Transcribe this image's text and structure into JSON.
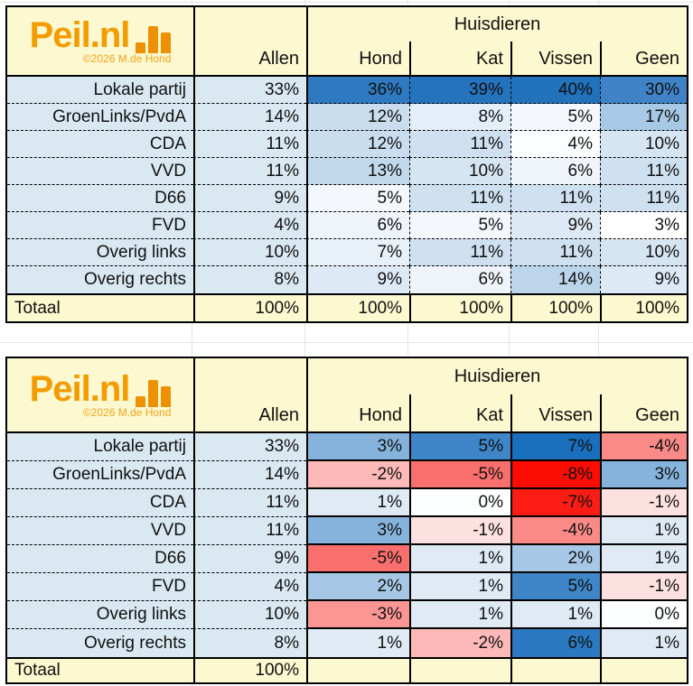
{
  "logo": {
    "brand": "Peil.nl",
    "copyright": "©2026 M.de Hond"
  },
  "colors": {
    "header_yellow": "#FCF8CF",
    "label_blue": "#D9E8F1",
    "brand_orange": "#F49B00",
    "bars_orange": "#EE9100",
    "copyright_orange": "#F5A31F",
    "border_black": "#000000",
    "faint_grid": "#E4E4E4",
    "positive_scale_max": "#1A6FBC",
    "negative_scale_max": "#FC0D04"
  },
  "chart_data": [
    {
      "type": "table",
      "group_header": "Huisdieren",
      "columns": [
        "Allen",
        "Hond",
        "Kat",
        "Vissen",
        "Geen"
      ],
      "rows": [
        {
          "label": "Lokale partij",
          "allen": "33%",
          "cells": [
            {
              "v": "36%",
              "bg": "#2E79C0"
            },
            {
              "v": "39%",
              "bg": "#2573BD"
            },
            {
              "v": "40%",
              "bg": "#2171BB"
            },
            {
              "v": "30%",
              "bg": "#3F83C6"
            }
          ]
        },
        {
          "label": "GroenLinks/PvdA",
          "allen": "14%",
          "cells": [
            {
              "v": "12%",
              "bg": "#C9DDEF"
            },
            {
              "v": "8%",
              "bg": "#E3EEF8"
            },
            {
              "v": "5%",
              "bg": "#F4F8FC"
            },
            {
              "v": "17%",
              "bg": "#A7C9E5"
            }
          ]
        },
        {
          "label": "CDA",
          "allen": "11%",
          "cells": [
            {
              "v": "12%",
              "bg": "#C9DDEF"
            },
            {
              "v": "11%",
              "bg": "#CFE1F1"
            },
            {
              "v": "4%",
              "bg": "#FBFDFE"
            },
            {
              "v": "10%",
              "bg": "#D6E5F2"
            }
          ]
        },
        {
          "label": "VVD",
          "allen": "11%",
          "cells": [
            {
              "v": "13%",
              "bg": "#C2D9EC"
            },
            {
              "v": "10%",
              "bg": "#D6E5F2"
            },
            {
              "v": "6%",
              "bg": "#EEF4FA"
            },
            {
              "v": "11%",
              "bg": "#CFE1F1"
            }
          ]
        },
        {
          "label": "D66",
          "allen": "9%",
          "cells": [
            {
              "v": "5%",
              "bg": "#F4F8FC"
            },
            {
              "v": "11%",
              "bg": "#CFE1F1"
            },
            {
              "v": "11%",
              "bg": "#CFE1F1"
            },
            {
              "v": "11%",
              "bg": "#CFE1F1"
            }
          ]
        },
        {
          "label": "FVD",
          "allen": "4%",
          "cells": [
            {
              "v": "6%",
              "bg": "#EEF4FA"
            },
            {
              "v": "5%",
              "bg": "#F4F8FC"
            },
            {
              "v": "9%",
              "bg": "#DDE9F5"
            },
            {
              "v": "3%",
              "bg": "#FFFFFF"
            }
          ]
        },
        {
          "label": "Overig links",
          "allen": "10%",
          "cells": [
            {
              "v": "7%",
              "bg": "#E8F0F8"
            },
            {
              "v": "11%",
              "bg": "#CFE1F1"
            },
            {
              "v": "11%",
              "bg": "#CFE1F1"
            },
            {
              "v": "10%",
              "bg": "#D6E5F2"
            }
          ]
        },
        {
          "label": "Overig rechts",
          "allen": "8%",
          "cells": [
            {
              "v": "9%",
              "bg": "#DDE9F5"
            },
            {
              "v": "6%",
              "bg": "#EEF4FA"
            },
            {
              "v": "14%",
              "bg": "#BCD5EA"
            },
            {
              "v": "9%",
              "bg": "#DDE9F5"
            }
          ]
        }
      ],
      "total": {
        "label": "Totaal",
        "allen": "100%",
        "cells": [
          "100%",
          "100%",
          "100%",
          "100%"
        ]
      }
    },
    {
      "type": "table",
      "group_header": "Huisdieren",
      "columns": [
        "Allen",
        "Hond",
        "Kat",
        "Vissen",
        "Geen"
      ],
      "rows": [
        {
          "label": "Lokale partij",
          "allen": "33%",
          "cells": [
            {
              "v": "3%",
              "bg": "#85B3DC"
            },
            {
              "v": "5%",
              "bg": "#3E86C8"
            },
            {
              "v": "7%",
              "bg": "#1A6FBC"
            },
            {
              "v": "-4%",
              "bg": "#F98A88"
            }
          ]
        },
        {
          "label": "GroenLinks/PvdA",
          "allen": "14%",
          "cells": [
            {
              "v": "-2%",
              "bg": "#FCB9B8"
            },
            {
              "v": "-5%",
              "bg": "#F96F6D"
            },
            {
              "v": "-8%",
              "bg": "#FC0D04"
            },
            {
              "v": "3%",
              "bg": "#85B3DC"
            }
          ]
        },
        {
          "label": "CDA",
          "allen": "11%",
          "cells": [
            {
              "v": "1%",
              "bg": "#DFEAF5"
            },
            {
              "v": "0%",
              "bg": "#FDFEFF"
            },
            {
              "v": "-7%",
              "bg": "#FB1D14"
            },
            {
              "v": "-1%",
              "bg": "#FDE1E0"
            }
          ]
        },
        {
          "label": "VVD",
          "allen": "11%",
          "cells": [
            {
              "v": "3%",
              "bg": "#85B3DC"
            },
            {
              "v": "-1%",
              "bg": "#FDE1E0"
            },
            {
              "v": "-4%",
              "bg": "#F98A88"
            },
            {
              "v": "1%",
              "bg": "#DFEAF5"
            }
          ]
        },
        {
          "label": "D66",
          "allen": "9%",
          "cells": [
            {
              "v": "-5%",
              "bg": "#F96F6D"
            },
            {
              "v": "1%",
              "bg": "#DFEAF5"
            },
            {
              "v": "2%",
              "bg": "#A6C7E5"
            },
            {
              "v": "1%",
              "bg": "#DFEAF5"
            }
          ]
        },
        {
          "label": "FVD",
          "allen": "4%",
          "cells": [
            {
              "v": "2%",
              "bg": "#A6C7E5"
            },
            {
              "v": "1%",
              "bg": "#DFEAF5"
            },
            {
              "v": "5%",
              "bg": "#3E86C8"
            },
            {
              "v": "-1%",
              "bg": "#FDE1E0"
            }
          ]
        },
        {
          "label": "Overig links",
          "allen": "10%",
          "cells": [
            {
              "v": "-3%",
              "bg": "#FA9694"
            },
            {
              "v": "1%",
              "bg": "#DFEAF5"
            },
            {
              "v": "1%",
              "bg": "#DFEAF5"
            },
            {
              "v": "0%",
              "bg": "#FDFEFF"
            }
          ]
        },
        {
          "label": "Overig rechts",
          "allen": "8%",
          "cells": [
            {
              "v": "1%",
              "bg": "#DFEAF5"
            },
            {
              "v": "-2%",
              "bg": "#FCB9B8"
            },
            {
              "v": "6%",
              "bg": "#2B7AC1"
            },
            {
              "v": "1%",
              "bg": "#DFEAF5"
            }
          ]
        }
      ],
      "total": {
        "label": "Totaal",
        "allen": "100%",
        "cells": [
          "",
          "",
          "",
          ""
        ]
      }
    }
  ]
}
